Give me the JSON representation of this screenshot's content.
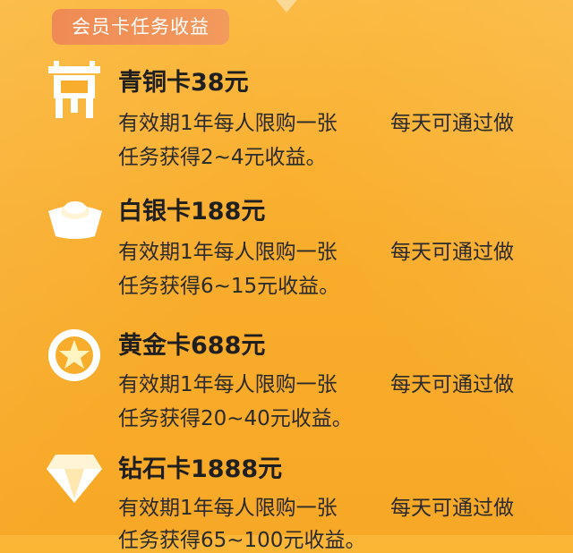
{
  "header": {
    "label": "会员卡任务收益"
  },
  "cards": [
    {
      "icon": "bronze-vessel-icon",
      "title": "青铜卡38元",
      "desc_left": "有效期1年每人限购一张",
      "desc_right": "每天可通过做",
      "desc_line2": "任务获得2~4元收益。"
    },
    {
      "icon": "silver-ingot-icon",
      "title": "白银卡188元",
      "desc_left": "有效期1年每人限购一张",
      "desc_right": "每天可通过做",
      "desc_line2": "任务获得6~15元收益。"
    },
    {
      "icon": "gold-star-coin-icon",
      "title": "黄金卡688元",
      "desc_left": "有效期1年每人限购一张",
      "desc_right": "每天可通过做",
      "desc_line2": "任务获得20~40元收益。"
    },
    {
      "icon": "diamond-icon",
      "title": "钻石卡1888元",
      "desc_left": "有效期1年每人限购一张",
      "desc_right": "每天可通过做",
      "desc_line2": "任务获得65~100元收益。"
    }
  ],
  "colors": {
    "background": "#f9ad2c",
    "badge": "#f08a55",
    "text": "#1f1f1f"
  }
}
